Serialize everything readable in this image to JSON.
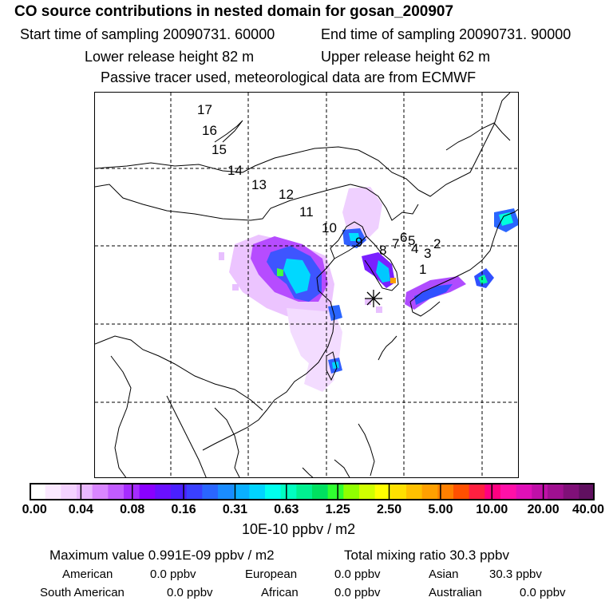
{
  "header": {
    "title": "CO  source contributions in nested domain for gosan_200907",
    "start_time": "Start time of sampling 20090731. 60000",
    "end_time": "End time of sampling 20090731. 90000",
    "lower_height": "Lower release height   82 m",
    "upper_height": "Upper release height   62 m",
    "tracer_note": "Passive tracer used, meteorological data are from ECMWF"
  },
  "map": {
    "trajectory_labels": [
      "17",
      "16",
      "15",
      "14",
      "13",
      "12",
      "11",
      "10",
      "9",
      "8",
      "7",
      "6",
      "5",
      "4",
      "3",
      "2",
      "1"
    ],
    "release_site_marker": "star-marker-icon",
    "colors": {
      "land_outline": "#000000",
      "grid": "#000000"
    }
  },
  "colorbar": {
    "ticks": [
      "0.00",
      "0.04",
      "0.08",
      "0.16",
      "0.31",
      "0.63",
      "1.25",
      "2.50",
      "5.00",
      "10.00",
      "20.00",
      "40.00"
    ],
    "unit": "10E-10 ppbv / m2",
    "colors": [
      "#ffffff",
      "#fbe9ff",
      "#f4d2ff",
      "#eab8ff",
      "#d986ff",
      "#c25cff",
      "#a62cff",
      "#8a00ff",
      "#6a10ff",
      "#4a20ff",
      "#3a40ff",
      "#2a66ff",
      "#1a8cff",
      "#0ab0ff",
      "#00d4ff",
      "#00ffee",
      "#00ffc0",
      "#00f090",
      "#00e060",
      "#30ff30",
      "#90ff00",
      "#d0ff00",
      "#ffff00",
      "#ffe000",
      "#ffc000",
      "#ffa000",
      "#ff8000",
      "#ff5000",
      "#ff2040",
      "#ff0080",
      "#ff10a8",
      "#e010b8",
      "#c010a8",
      "#a01090",
      "#801078",
      "#601060"
    ]
  },
  "stats": {
    "max_value": "Maximum value  0.991E-09 ppbv / m2",
    "total_mixing": "Total mixing ratio       30.3 ppbv",
    "regions": [
      {
        "name": "American",
        "value": "0.0 ppbv"
      },
      {
        "name": "European",
        "value": "0.0 ppbv"
      },
      {
        "name": "Asian",
        "value": "30.3 ppbv"
      },
      {
        "name": "South American",
        "value": "0.0 ppbv"
      },
      {
        "name": "African",
        "value": "0.0 ppbv"
      },
      {
        "name": "Australian",
        "value": "0.0 ppbv"
      }
    ]
  }
}
